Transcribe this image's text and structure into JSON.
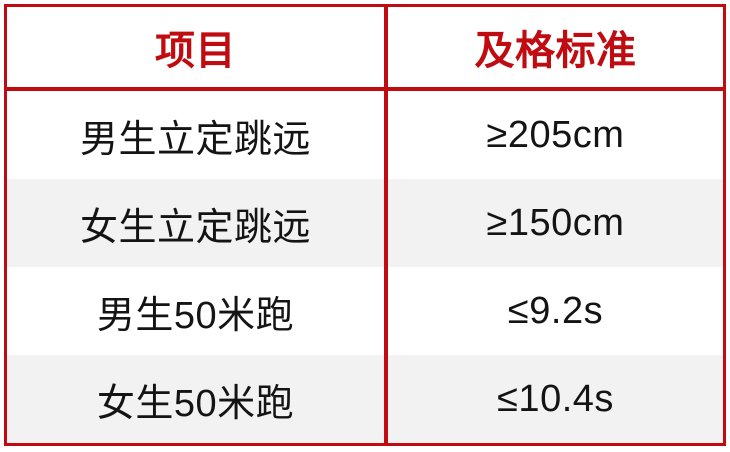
{
  "table": {
    "title_semantic": "pe-test-passing-standards",
    "accent_color": "#c00b10",
    "stripe_color": "#f2f2f2",
    "body_text_color": "#141414",
    "headers": [
      "项目",
      "及格标准"
    ],
    "rows": [
      {
        "item": "男生立定跳远",
        "standard": "≥205cm"
      },
      {
        "item": "女生立定跳远",
        "standard": "≥150cm"
      },
      {
        "item": "男生50米跑",
        "standard": "≤9.2s"
      },
      {
        "item": "女生50米跑",
        "standard": "≤10.4s"
      }
    ]
  }
}
